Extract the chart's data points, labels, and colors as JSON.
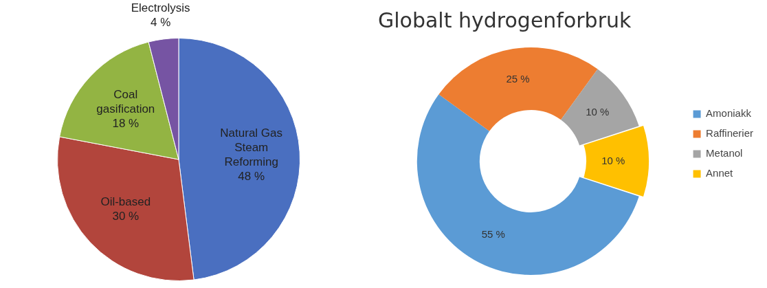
{
  "chart_data": [
    {
      "type": "pie",
      "categories": [
        "Natural Gas Steam Reforming",
        "Oil-based",
        "Coal gasification",
        "Electrolysis"
      ],
      "values": [
        48,
        30,
        18,
        4
      ],
      "colors": [
        "#4a6fc0",
        "#b2453c",
        "#93b443",
        "#7654a3"
      ],
      "value_labels": [
        "48 %",
        "30 %",
        "18 %",
        "4 %"
      ],
      "legend": false
    },
    {
      "type": "donut",
      "title": "Globalt hydrogenforbruk",
      "categories": [
        "Amoniakk",
        "Raffinerier",
        "Metanol",
        "Annet"
      ],
      "values": [
        55,
        25,
        10,
        10
      ],
      "colors": [
        "#5b9bd5",
        "#ed7d31",
        "#a5a5a5",
        "#ffc000"
      ],
      "value_labels": [
        "55 %",
        "25 %",
        "10 %",
        "10 %"
      ],
      "legend": "right"
    }
  ]
}
